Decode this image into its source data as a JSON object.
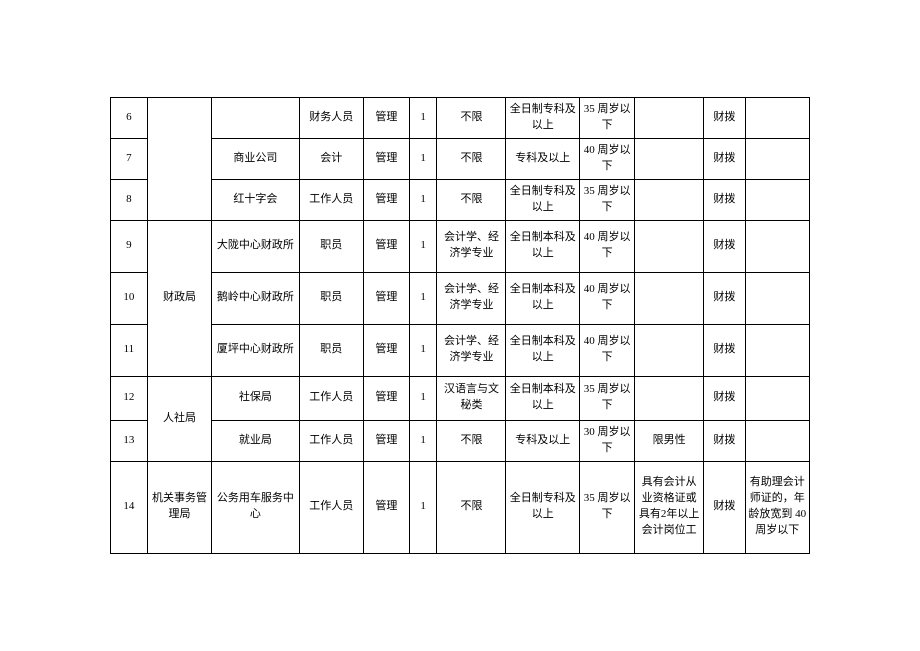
{
  "table": {
    "rows": [
      {
        "idx": "6",
        "unit": "",
        "pos": "财务人员",
        "type": "管理",
        "cnt": "1",
        "maj": "不限",
        "edu": "全日制专科及以上",
        "age": "35 周岁以下",
        "other": "",
        "fund": "财拨",
        "note": ""
      },
      {
        "idx": "7",
        "unit": "商业公司",
        "pos": "会计",
        "type": "管理",
        "cnt": "1",
        "maj": "不限",
        "edu": "专科及以上",
        "age": "40 周岁以下",
        "other": "",
        "fund": "财拨",
        "note": ""
      },
      {
        "idx": "8",
        "unit": "红十字会",
        "pos": "工作人员",
        "type": "管理",
        "cnt": "1",
        "maj": "不限",
        "edu": "全日制专科及以上",
        "age": "35 周岁以下",
        "other": "",
        "fund": "财拨",
        "note": ""
      },
      {
        "idx": "9",
        "dept": "财政局",
        "unit": "大陇中心财政所",
        "pos": "职员",
        "type": "管理",
        "cnt": "1",
        "maj": "会计学、经济学专业",
        "edu": "全日制本科及以上",
        "age": "40 周岁以下",
        "other": "",
        "fund": "财拨",
        "note": ""
      },
      {
        "idx": "10",
        "unit": "鹅岭中心财政所",
        "pos": "职员",
        "type": "管理",
        "cnt": "1",
        "maj": "会计学、经济学专业",
        "edu": "全日制本科及以上",
        "age": "40 周岁以下",
        "other": "",
        "fund": "财拨",
        "note": ""
      },
      {
        "idx": "11",
        "unit": "厦坪中心财政所",
        "pos": "职员",
        "type": "管理",
        "cnt": "1",
        "maj": "会计学、经济学专业",
        "edu": "全日制本科及以上",
        "age": "40 周岁以下",
        "other": "",
        "fund": "财拨",
        "note": ""
      },
      {
        "idx": "12",
        "dept": "人社局",
        "unit": "社保局",
        "pos": "工作人员",
        "type": "管理",
        "cnt": "1",
        "maj": "汉语言与文秘类",
        "edu": "全日制本科及以上",
        "age": "35 周岁以下",
        "other": "",
        "fund": "财拨",
        "note": ""
      },
      {
        "idx": "13",
        "unit": "就业局",
        "pos": "工作人员",
        "type": "管理",
        "cnt": "1",
        "maj": "不限",
        "edu": "专科及以上",
        "age": "30 周岁以下",
        "other": "限男性",
        "fund": "财拨",
        "note": ""
      },
      {
        "idx": "14",
        "dept": "机关事务管理局",
        "unit": "公务用车服务中心",
        "pos": "工作人员",
        "type": "管理",
        "cnt": "1",
        "maj": "不限",
        "edu": "全日制专科及以上",
        "age": "35 周岁以下",
        "other": "具有会计从业资格证或具有2年以上会计岗位工",
        "fund": "财拨",
        "note": "有助理会计师证的，年龄放宽到 40 周岁以下"
      }
    ]
  }
}
